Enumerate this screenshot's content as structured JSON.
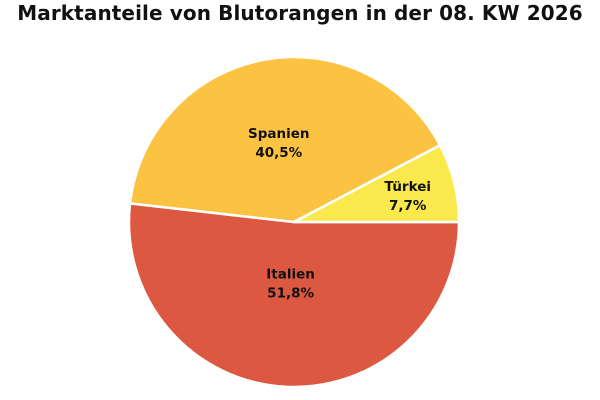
{
  "chart_data": {
    "type": "pie",
    "title": "Marktanteile von Blutorangen in der 08. KW 2026",
    "slices": [
      {
        "name": "Italien",
        "value": 51.8,
        "label": "51,8%",
        "color": "#dc5840"
      },
      {
        "name": "Spanien",
        "value": 40.5,
        "label": "40,5%",
        "color": "#fcc343"
      },
      {
        "name": "Türkei",
        "value": 7.7,
        "label": "7,7%",
        "color": "#f9e94d"
      }
    ],
    "start": "3 o'clock",
    "direction": "clockwise",
    "legend": "none",
    "slice_border_color": "#ffffff"
  }
}
